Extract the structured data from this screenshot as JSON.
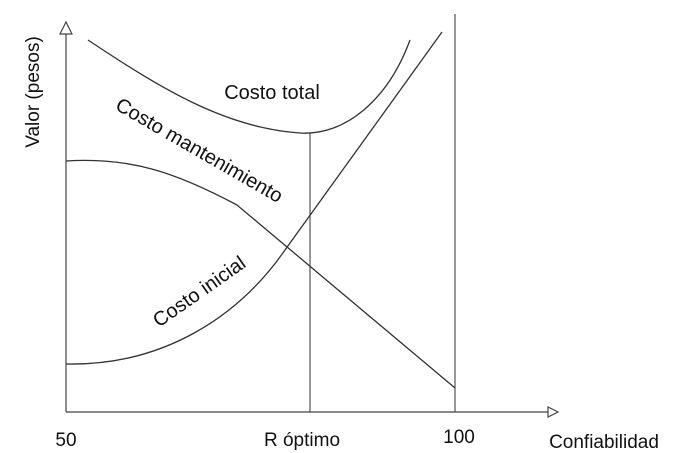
{
  "chart_data": {
    "type": "line",
    "ylabel": "Valor (pesos)",
    "xlabel": "Confiabilidad",
    "x_ticks": [
      "50",
      "R óptimo",
      "100"
    ],
    "xlim": [
      50,
      100
    ],
    "grid": false,
    "colors": {
      "line": "#333333",
      "text": "#111111"
    },
    "series": [
      {
        "name": "Costo total"
      },
      {
        "name": "Costo mantenimiento"
      },
      {
        "name": "Costo inicial"
      }
    ]
  }
}
